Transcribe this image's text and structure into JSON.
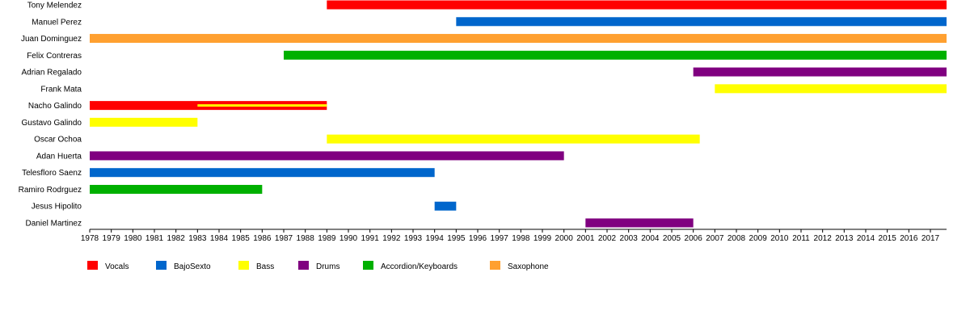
{
  "chart_data": {
    "type": "timeline",
    "members": [
      "Tony Melendez",
      "Manuel Perez",
      "Juan Dominguez",
      "Felix Contreras",
      "Adrian Regalado",
      "Frank Mata",
      "Nacho Galindo",
      "Gustavo Galindo",
      "Oscar Ochoa",
      "Adan Huerta",
      "Telesfloro Saenz",
      "Ramiro Rodrguez",
      "Jesus Hipolito",
      "Daniel Martinez"
    ],
    "roles": [
      {
        "name": "Vocals",
        "color": "#ff0000"
      },
      {
        "name": "BajoSexto",
        "color": "#0066cc"
      },
      {
        "name": "Bass",
        "color": "#ffff00"
      },
      {
        "name": "Drums",
        "color": "#800080"
      },
      {
        "name": "Accordion/Keyboards",
        "color": "#00b000"
      },
      {
        "name": "Saxophone",
        "color": "#ffa030"
      }
    ],
    "bars": [
      {
        "member": "Tony Melendez",
        "role": "Vocals",
        "start": 1989.0,
        "end": 2017.75
      },
      {
        "member": "Manuel Perez",
        "role": "BajoSexto",
        "start": 1995.0,
        "end": 2017.75
      },
      {
        "member": "Juan Dominguez",
        "role": "Saxophone",
        "start": 1978.0,
        "end": 2017.75
      },
      {
        "member": "Felix Contreras",
        "role": "Accordion/Keyboards",
        "start": 1987.0,
        "end": 2017.75
      },
      {
        "member": "Adrian Regalado",
        "role": "Drums",
        "start": 2006.0,
        "end": 2017.75
      },
      {
        "member": "Frank Mata",
        "role": "Bass",
        "start": 2007.0,
        "end": 2017.75
      },
      {
        "member": "Nacho Galindo",
        "role": "Vocals",
        "start": 1978.0,
        "end": 1989.0
      },
      {
        "member": "Nacho Galindo",
        "role": "Bass",
        "start": 1983.0,
        "end": 1989.0,
        "secondary": true
      },
      {
        "member": "Gustavo Galindo",
        "role": "Bass",
        "start": 1978.0,
        "end": 1983.0
      },
      {
        "member": "Oscar Ochoa",
        "role": "Bass",
        "start": 1989.0,
        "end": 2006.3
      },
      {
        "member": "Adan Huerta",
        "role": "Drums",
        "start": 1978.0,
        "end": 2000.0
      },
      {
        "member": "Telesfloro Saenz",
        "role": "BajoSexto",
        "start": 1978.0,
        "end": 1994.0
      },
      {
        "member": "Ramiro Rodrguez",
        "role": "Accordion/Keyboards",
        "start": 1978.0,
        "end": 1986.0
      },
      {
        "member": "Jesus Hipolito",
        "role": "BajoSexto",
        "start": 1994.0,
        "end": 1995.0
      },
      {
        "member": "Daniel Martinez",
        "role": "Drums",
        "start": 2001.0,
        "end": 2006.0
      }
    ],
    "x_ticks": [
      "1978",
      "1979",
      "1980",
      "1981",
      "1982",
      "1983",
      "1984",
      "1985",
      "1986",
      "1987",
      "1988",
      "1989",
      "1990",
      "1991",
      "1992",
      "1993",
      "1994",
      "1995",
      "1996",
      "1997",
      "1998",
      "1999",
      "2000",
      "2001",
      "2002",
      "2003",
      "2004",
      "2005",
      "2006",
      "2007",
      "2008",
      "2009",
      "2010",
      "2011",
      "2012",
      "2013",
      "2014",
      "2015",
      "2016",
      "2017"
    ],
    "xlim": [
      1978,
      2017.75
    ],
    "grid": false,
    "legend_position": "bottom"
  }
}
